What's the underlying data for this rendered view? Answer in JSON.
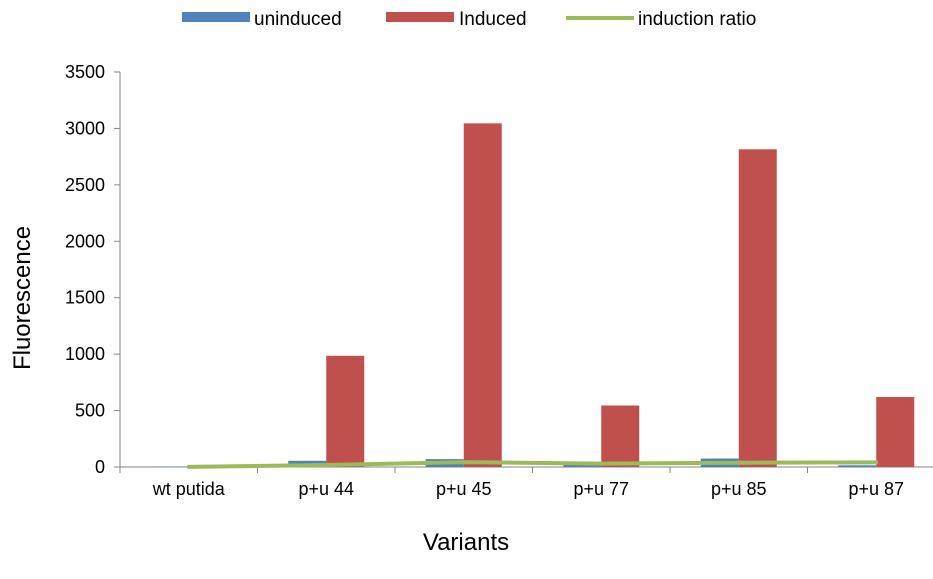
{
  "chart_data": {
    "type": "bar",
    "title": "",
    "xlabel": "Variants",
    "ylabel": "Fluorescence",
    "categories": [
      "wt putida",
      "p+u 44",
      "p+u 45",
      "p+u 77",
      "p+u 85",
      "p+u 87"
    ],
    "ylim": [
      0,
      3500
    ],
    "yticks": [
      0,
      500,
      1000,
      1500,
      2000,
      2500,
      3000,
      3500
    ],
    "grid": false,
    "legend_position": "top",
    "series": [
      {
        "name": "uninduced",
        "kind": "bar",
        "color": "#4F81BD",
        "values": [
          3,
          55,
          70,
          18,
          75,
          15
        ]
      },
      {
        "name": "Induced",
        "kind": "bar",
        "color": "#C0504D",
        "values": [
          3,
          985,
          3045,
          545,
          2815,
          620
        ]
      },
      {
        "name": "induction ratio",
        "kind": "line",
        "color": "#9BBB59",
        "values": [
          1,
          18,
          43,
          30,
          38,
          41
        ]
      }
    ]
  }
}
